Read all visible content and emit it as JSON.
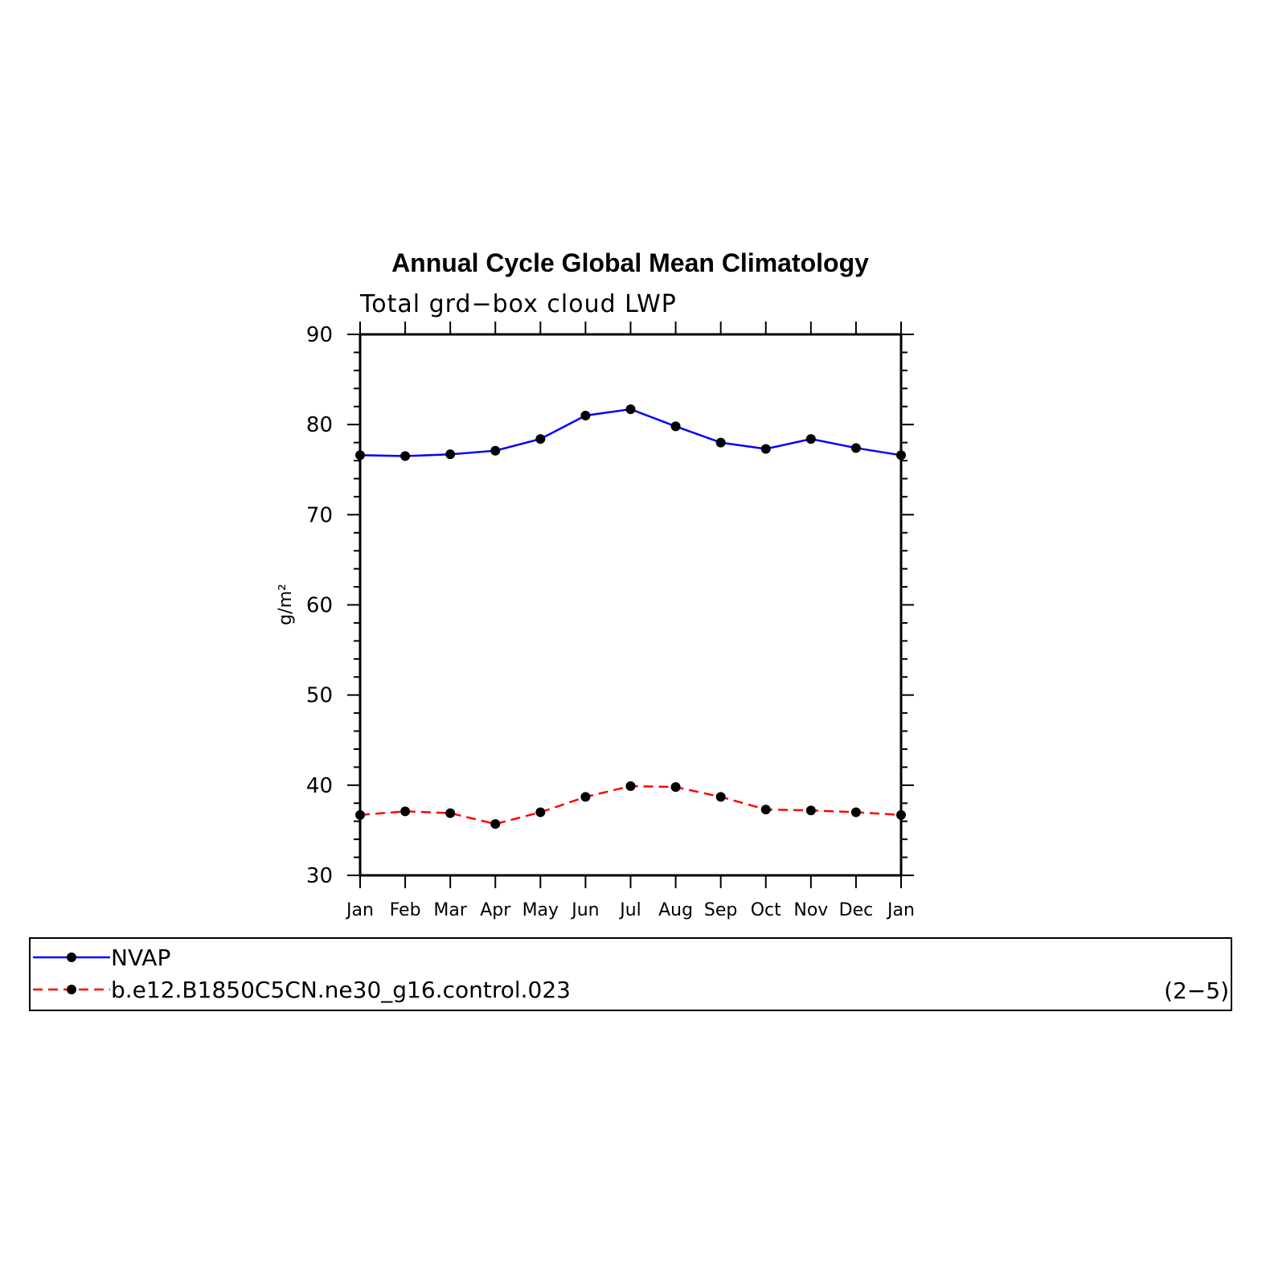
{
  "chart_data": {
    "type": "line",
    "title": "Annual Cycle Global Mean Climatology",
    "subtitle": "Total grd−box cloud LWP",
    "ylabel": "g/m²",
    "xlabel": "",
    "ylim": [
      30,
      90
    ],
    "yticks": [
      "90",
      "80",
      "70",
      "60",
      "50",
      "40",
      "30"
    ],
    "categories": [
      "Jan",
      "Feb",
      "Mar",
      "Apr",
      "May",
      "Jun",
      "Jul",
      "Aug",
      "Sep",
      "Oct",
      "Nov",
      "Dec",
      "Jan"
    ],
    "series": [
      {
        "name": "NVAP",
        "color": "#0000ff",
        "dash": "solid",
        "values": [
          76.6,
          76.5,
          76.7,
          77.1,
          78.4,
          81.0,
          81.7,
          79.8,
          78.0,
          77.3,
          78.4,
          77.4,
          76.6
        ]
      },
      {
        "name": "b.e12.B1850C5CN.ne30_g16.control.023",
        "color": "#ff0000",
        "dash": "dashed",
        "values": [
          36.7,
          37.1,
          36.9,
          35.7,
          37.0,
          38.7,
          39.9,
          39.8,
          38.7,
          37.3,
          37.2,
          37.0,
          36.7
        ]
      }
    ],
    "legend_position": "bottom",
    "panel_label": "(2−5)",
    "grid": false
  }
}
